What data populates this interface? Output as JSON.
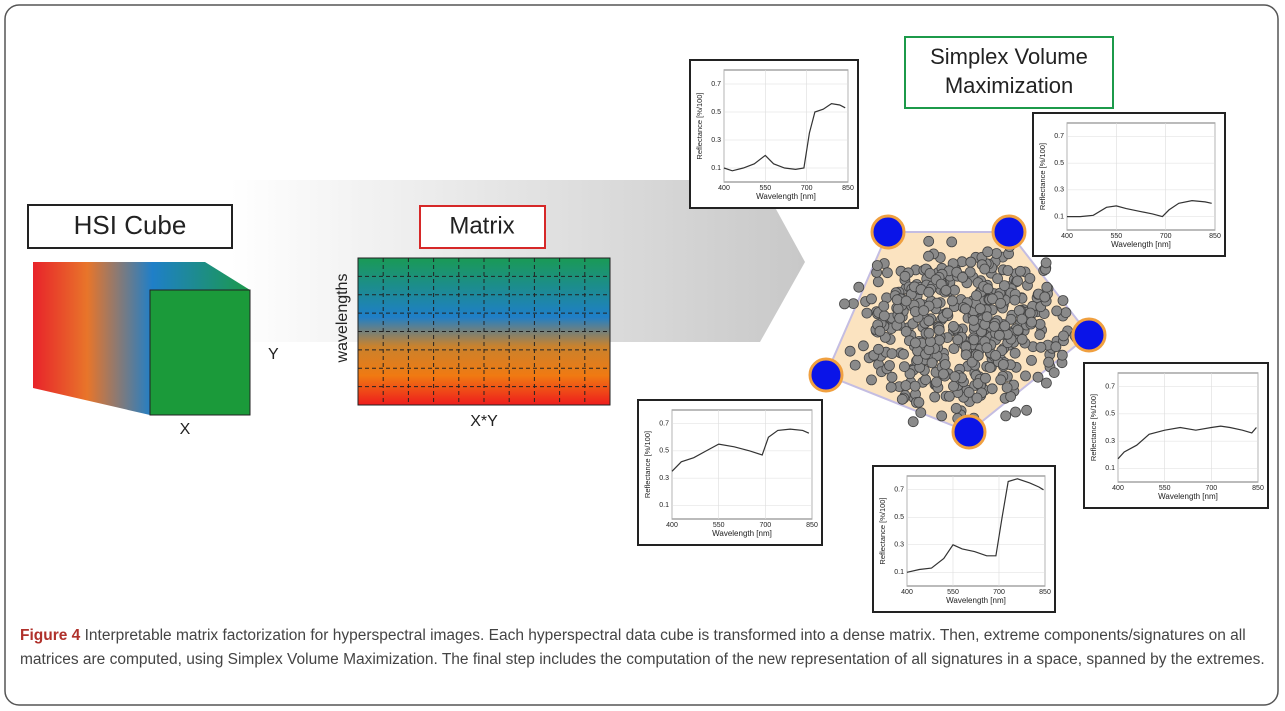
{
  "figure": {
    "hsi_label": "HSI Cube",
    "cube_y": "Y",
    "cube_x": "X",
    "matrix_label": "Matrix",
    "matrix_ylabel": "wavelengths",
    "matrix_xlabel": "X*Y",
    "simplex_label": [
      "Simplex Volume",
      "Maximization"
    ],
    "plots": [
      {
        "xlabel": "Wavelength [nm]",
        "ylabel": "Reflectance [%/100]",
        "xlim": [
          400,
          850
        ],
        "ylim": [
          0,
          0.8
        ],
        "xticks": [
          400,
          550,
          700,
          850
        ],
        "yticks": [
          0.1,
          0.3,
          0.5,
          0.7
        ],
        "x": [
          400,
          430,
          470,
          510,
          550,
          580,
          620,
          660,
          690,
          710,
          730,
          760,
          790,
          820,
          840
        ],
        "values": [
          0.1,
          0.08,
          0.1,
          0.13,
          0.19,
          0.13,
          0.1,
          0.09,
          0.1,
          0.35,
          0.5,
          0.52,
          0.56,
          0.55,
          0.53
        ]
      },
      {
        "xlabel": "Wavelength [nm]",
        "ylabel": "Reflectance [%/100]",
        "xlim": [
          400,
          850
        ],
        "ylim": [
          0,
          0.8
        ],
        "xticks": [
          400,
          550,
          700,
          850
        ],
        "yticks": [
          0.1,
          0.3,
          0.5,
          0.7
        ],
        "x": [
          400,
          440,
          480,
          520,
          550,
          580,
          620,
          660,
          690,
          710,
          740,
          780,
          820,
          840
        ],
        "values": [
          0.1,
          0.1,
          0.11,
          0.17,
          0.18,
          0.16,
          0.14,
          0.12,
          0.1,
          0.15,
          0.2,
          0.22,
          0.21,
          0.2
        ]
      },
      {
        "xlabel": "Wavelength [nm]",
        "ylabel": "Reflectance [%/100]",
        "xlim": [
          400,
          850
        ],
        "ylim": [
          0,
          0.8
        ],
        "xticks": [
          400,
          550,
          700,
          850
        ],
        "yticks": [
          0.1,
          0.3,
          0.5,
          0.7
        ],
        "x": [
          400,
          420,
          460,
          500,
          550,
          600,
          650,
          700,
          730,
          760,
          800,
          830,
          845
        ],
        "values": [
          0.17,
          0.22,
          0.27,
          0.35,
          0.38,
          0.4,
          0.38,
          0.4,
          0.41,
          0.4,
          0.38,
          0.36,
          0.4
        ]
      },
      {
        "xlabel": "Wavelength [nm]",
        "ylabel": "Reflectance [%/100]",
        "xlim": [
          400,
          850
        ],
        "ylim": [
          0,
          0.8
        ],
        "xticks": [
          400,
          550,
          700,
          850
        ],
        "yticks": [
          0.1,
          0.3,
          0.5,
          0.7
        ],
        "x": [
          400,
          430,
          470,
          510,
          550,
          600,
          650,
          690,
          710,
          740,
          780,
          820,
          840
        ],
        "values": [
          0.35,
          0.42,
          0.45,
          0.5,
          0.55,
          0.53,
          0.5,
          0.47,
          0.6,
          0.65,
          0.66,
          0.65,
          0.63
        ]
      },
      {
        "xlabel": "Wavelength [nm]",
        "ylabel": "Reflectance [%/100]",
        "xlim": [
          400,
          850
        ],
        "ylim": [
          0,
          0.8
        ],
        "xticks": [
          400,
          550,
          700,
          850
        ],
        "yticks": [
          0.1,
          0.3,
          0.5,
          0.7
        ],
        "x": [
          400,
          440,
          480,
          520,
          550,
          580,
          620,
          660,
          690,
          710,
          730,
          760,
          800,
          830,
          845
        ],
        "values": [
          0.1,
          0.12,
          0.13,
          0.2,
          0.3,
          0.27,
          0.25,
          0.22,
          0.22,
          0.5,
          0.76,
          0.78,
          0.75,
          0.72,
          0.7
        ]
      }
    ]
  },
  "caption": {
    "label": "Figure 4",
    "text": "Interpretable matrix factorization for hyperspectral images. Each hyperspectral data cube is transformed into a dense matrix. Then, extreme components/signatures on all matrices are computed, using Simplex Volume Maximization. The final step includes the computation of the new representation of all signatures in a space, spanned by the extremes."
  }
}
